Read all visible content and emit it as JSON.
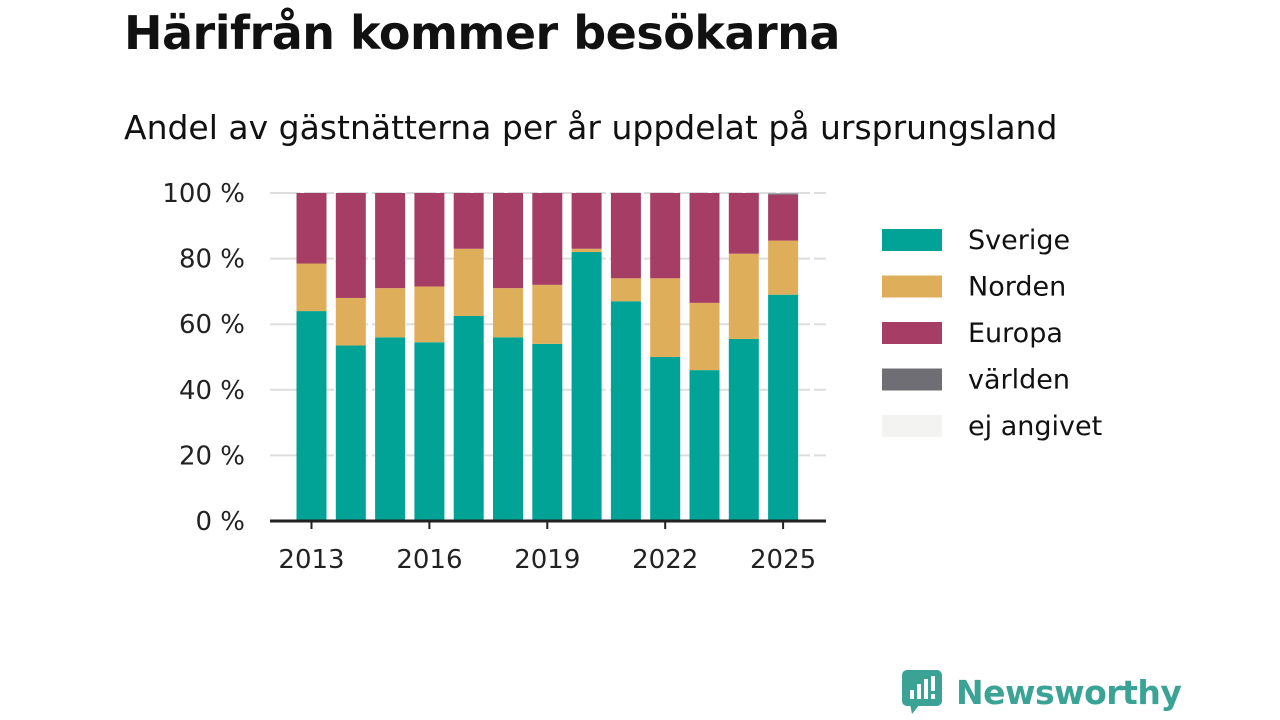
{
  "chart_data": {
    "type": "bar",
    "stacked": true,
    "title": "Härifrån kommer besökarna",
    "subtitle": "Andel av gästnätterna per år uppdelat på ursprungsland",
    "categories": [
      "2013",
      "2014",
      "2015",
      "2016",
      "2017",
      "2018",
      "2019",
      "2020",
      "2021",
      "2022",
      "2023",
      "2024",
      "2025"
    ],
    "x_tick_labels": [
      "2013",
      "2016",
      "2019",
      "2022",
      "2025"
    ],
    "y_tick_labels": [
      "0 %",
      "20 %",
      "40 %",
      "60 %",
      "80 %",
      "100 %"
    ],
    "ylim": [
      0,
      100
    ],
    "grid": true,
    "legend_position": "right",
    "series": [
      {
        "name": "Sverige",
        "color": "#00a396",
        "values": [
          64,
          53.5,
          56,
          54.5,
          62.5,
          56,
          54,
          82,
          67,
          50,
          46,
          55.5,
          69
        ]
      },
      {
        "name": "Norden",
        "color": "#deae5b",
        "values": [
          14.5,
          14.5,
          15,
          17,
          20.5,
          15,
          18,
          1,
          7,
          24,
          20.5,
          26,
          16.5
        ]
      },
      {
        "name": "Europa",
        "color": "#a63d64",
        "values": [
          21.5,
          32,
          29,
          28.5,
          17,
          29,
          28,
          17,
          26,
          26,
          33.5,
          18.5,
          14
        ]
      },
      {
        "name": "världen",
        "color": "#6e6e74",
        "values": [
          0,
          0,
          0,
          0,
          0,
          0,
          0,
          0,
          0,
          0,
          0,
          0,
          0.4
        ]
      },
      {
        "name": "ej angivet",
        "color": "#f3f3f1",
        "values": [
          0,
          0,
          0,
          0,
          0,
          0,
          0,
          0,
          0,
          0,
          0,
          0,
          0.1
        ]
      }
    ]
  },
  "brand": {
    "name": "Newsworthy",
    "icon": "newsworthy-logo-icon",
    "color": "#3aa396"
  }
}
